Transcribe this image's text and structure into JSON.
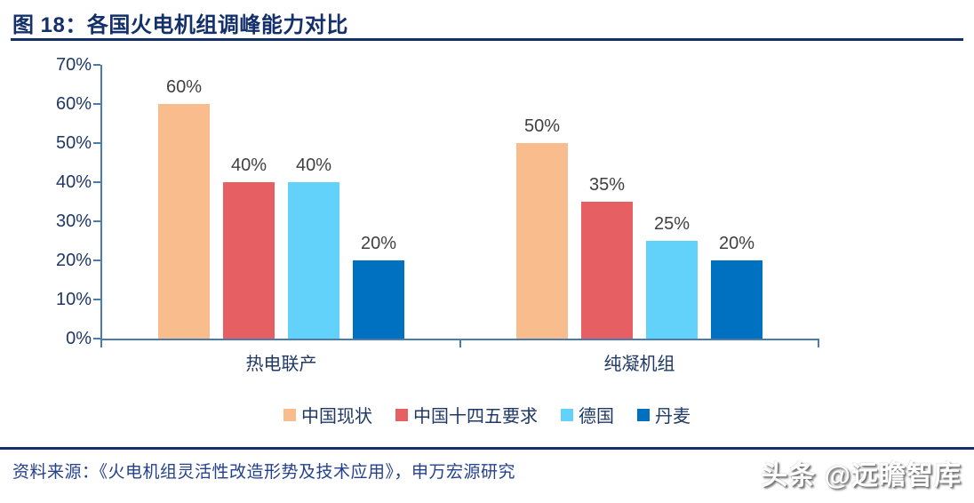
{
  "page": {
    "title": "图 18：各国火电机组调峰能力对比",
    "source_text": "资料来源：《火电机组灵活性改造形势及技术应用》，申万宏源研究",
    "watermark": "头条 @远瞻智库"
  },
  "colors": {
    "title": "#14306A",
    "rule": "#14306A",
    "axis": "#4A7CB0",
    "tick_label": "#1F3864",
    "data_label": "#404040",
    "source": "#24418C",
    "series": [
      "#F9BC8C",
      "#E55F63",
      "#63D2FB",
      "#0071C1"
    ]
  },
  "chart_data": {
    "type": "bar",
    "title": "各国火电机组调峰能力对比",
    "categories": [
      "热电联产",
      "纯凝机组"
    ],
    "series": [
      {
        "name": "中国现状",
        "color": "#F9BC8C",
        "values": [
          60,
          50
        ]
      },
      {
        "name": "中国十四五要求",
        "color": "#E55F63",
        "values": [
          40,
          35
        ]
      },
      {
        "name": "德国",
        "color": "#63D2FB",
        "values": [
          40,
          25
        ]
      },
      {
        "name": "丹麦",
        "color": "#0071C1",
        "values": [
          20,
          20
        ]
      }
    ],
    "data_labels": [
      [
        "60%",
        "50%"
      ],
      [
        "40%",
        "35%"
      ],
      [
        "40%",
        "25%"
      ],
      [
        "20%",
        "20%"
      ]
    ],
    "data_label_suffix": "%",
    "yticks": [
      "0%",
      "10%",
      "20%",
      "30%",
      "40%",
      "50%",
      "60%",
      "70%"
    ],
    "ylim": [
      0,
      70
    ],
    "grid": false,
    "legend_position": "bottom",
    "xlabel": "",
    "ylabel": ""
  }
}
